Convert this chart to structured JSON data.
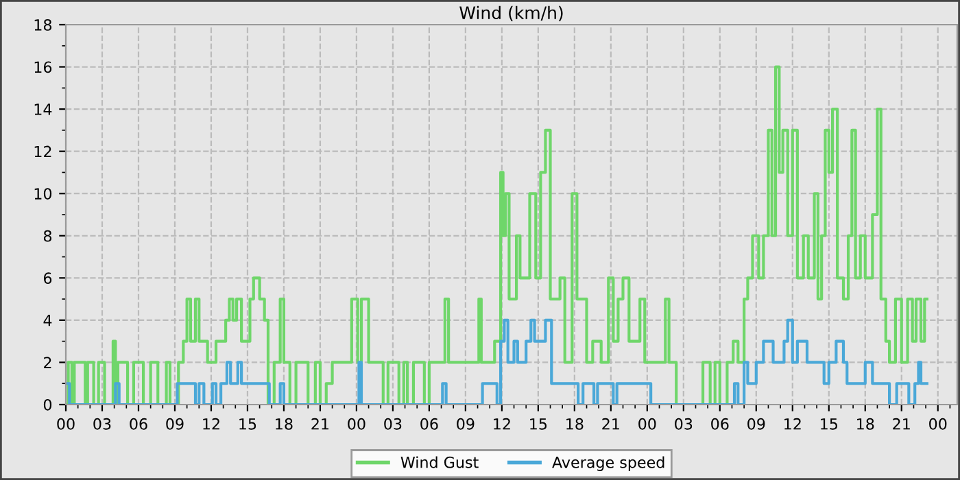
{
  "chart_data": {
    "type": "step",
    "title": "Wind (km/h)",
    "xlim": [
      0,
      73.6
    ],
    "ylim": [
      0,
      18
    ],
    "yticks": [
      0,
      2,
      4,
      6,
      8,
      10,
      12,
      14,
      16,
      18
    ],
    "xticks": [
      {
        "value": 0,
        "label": "00"
      },
      {
        "value": 3,
        "label": "03"
      },
      {
        "value": 6,
        "label": "06"
      },
      {
        "value": 9,
        "label": "09"
      },
      {
        "value": 12,
        "label": "12"
      },
      {
        "value": 15,
        "label": "15"
      },
      {
        "value": 18,
        "label": "18"
      },
      {
        "value": 21,
        "label": "21"
      },
      {
        "value": 24,
        "label": "00"
      },
      {
        "value": 27,
        "label": "03"
      },
      {
        "value": 30,
        "label": "06"
      },
      {
        "value": 33,
        "label": "09"
      },
      {
        "value": 36,
        "label": "12"
      },
      {
        "value": 39,
        "label": "15"
      },
      {
        "value": 42,
        "label": "18"
      },
      {
        "value": 45,
        "label": "21"
      },
      {
        "value": 48,
        "label": "00"
      },
      {
        "value": 51,
        "label": "03"
      },
      {
        "value": 54,
        "label": "06"
      },
      {
        "value": 57,
        "label": "09"
      },
      {
        "value": 60,
        "label": "12"
      },
      {
        "value": 63,
        "label": "15"
      },
      {
        "value": 66,
        "label": "18"
      },
      {
        "value": 69,
        "label": "21"
      },
      {
        "value": 72,
        "label": "00"
      }
    ],
    "grid": true,
    "legend": "bottom",
    "line_style": "solid",
    "series": [
      {
        "name": "Wind Gust",
        "color": "#6fd66a",
        "x": [
          0,
          0.2,
          0.5,
          0.7,
          1.4,
          1.6,
          1.8,
          2.3,
          2.7,
          3.2,
          3.9,
          4.1,
          4.3,
          4.9,
          5.1,
          5.6,
          6.2,
          6.4,
          7,
          7.6,
          8.3,
          8.6,
          9.3,
          9.7,
          10,
          10.3,
          10.7,
          11,
          11.7,
          12.4,
          13.2,
          13.5,
          13.8,
          14.1,
          14.5,
          15.2,
          15.5,
          16,
          16.4,
          16.7,
          17.2,
          17.7,
          18,
          18.5,
          19,
          20,
          20.6,
          21,
          21.5,
          22,
          23,
          23.6,
          24.1,
          24.4,
          25,
          26.2,
          26.6,
          27.5,
          27.9,
          28.2,
          28.7,
          29.6,
          30,
          30.8,
          31.3,
          31.6,
          33.6,
          34.1,
          34.3,
          35.4,
          35.9,
          36.1,
          36.3,
          36.6,
          37.2,
          37.5,
          38.3,
          38.8,
          39.2,
          39.6,
          40,
          40.8,
          41.2,
          41.8,
          42.2,
          43,
          43.5,
          44.2,
          44.8,
          45.2,
          45.6,
          46,
          46.5,
          47.4,
          47.8,
          49,
          49.5,
          49.8,
          50.4,
          52.4,
          52.6,
          53.2,
          53.6,
          54,
          54.6,
          55.1,
          55.5,
          56,
          56.3,
          56.7,
          57.2,
          57.6,
          58,
          58.3,
          58.6,
          58.9,
          59.2,
          59.6,
          60,
          60.4,
          60.9,
          61.3,
          61.8,
          62.1,
          62.4,
          62.7,
          63,
          63.3,
          63.7,
          64.2,
          64.6,
          64.9,
          65.2,
          65.6,
          66,
          66.6,
          67,
          67.3,
          67.7,
          68,
          68.5,
          69,
          69.5,
          69.9,
          70.2,
          70.6,
          70.9,
          71.1
        ],
        "values": [
          0,
          2,
          0,
          2,
          2,
          0,
          2,
          0,
          2,
          0,
          3,
          0,
          2,
          2,
          0,
          2,
          2,
          0,
          2,
          0,
          2,
          0,
          2,
          3,
          5,
          3,
          5,
          3,
          2,
          3,
          4,
          5,
          4,
          5,
          3,
          5,
          6,
          5,
          4,
          0,
          2,
          5,
          2,
          0,
          2,
          0,
          2,
          0,
          1,
          2,
          2,
          5,
          2,
          5,
          2,
          0,
          2,
          0,
          2,
          0,
          2,
          0,
          2,
          2,
          5,
          2,
          2,
          5,
          2,
          3,
          11,
          8,
          10,
          5,
          8,
          6,
          10,
          6,
          11,
          13,
          5,
          6,
          2,
          10,
          5,
          2,
          3,
          2,
          6,
          3,
          5,
          6,
          3,
          5,
          2,
          2,
          5,
          2,
          0,
          0,
          2,
          0,
          2,
          0,
          2,
          3,
          2,
          5,
          6,
          8,
          6,
          8,
          13,
          8,
          16,
          11,
          13,
          8,
          13,
          6,
          8,
          6,
          10,
          5,
          8,
          13,
          11,
          14,
          6,
          5,
          8,
          13,
          6,
          8,
          6,
          9,
          14,
          5,
          3,
          2,
          5,
          2,
          5,
          3,
          5,
          3,
          5,
          5
        ]
      },
      {
        "name": "Average speed",
        "color": "#4aa8d8",
        "x": [
          0,
          0.3,
          3.2,
          4.1,
          4.4,
          8.7,
          9.2,
          10.3,
          10.7,
          11,
          11.4,
          12.1,
          12.4,
          12.8,
          13.3,
          13.6,
          14.2,
          14.5,
          16.5,
          16.8,
          17.7,
          18,
          23.9,
          24.2,
          24.4,
          26,
          30.8,
          31.1,
          31.4,
          34.1,
          34.4,
          35.6,
          35.9,
          36.2,
          36.5,
          37,
          37.3,
          38,
          38.4,
          38.7,
          39.6,
          40.1,
          42,
          42.3,
          42.7,
          43.6,
          43.9,
          45.2,
          45.5,
          48,
          48.3,
          53,
          55.2,
          55.5,
          56,
          56.3,
          57,
          57.6,
          58.4,
          59.3,
          59.6,
          60,
          60.4,
          61.2,
          62.6,
          63,
          63.6,
          64.2,
          64.5,
          66,
          66.6,
          67.7,
          68,
          68.6,
          69.6,
          70.1,
          70.4,
          70.6,
          71.1
        ],
        "values": [
          1,
          0,
          0,
          1,
          0,
          0,
          1,
          1,
          0,
          1,
          0,
          1,
          0,
          1,
          2,
          1,
          2,
          1,
          1,
          0,
          1,
          0,
          0,
          2,
          0,
          0,
          0,
          1,
          0,
          0,
          1,
          0,
          3,
          4,
          2,
          3,
          2,
          3,
          4,
          3,
          4,
          1,
          1,
          0,
          1,
          0,
          1,
          0,
          1,
          1,
          0,
          0,
          1,
          0,
          2,
          1,
          2,
          3,
          2,
          3,
          4,
          2,
          3,
          2,
          1,
          2,
          3,
          2,
          1,
          2,
          1,
          1,
          0,
          1,
          0,
          1,
          2,
          1,
          1
        ]
      }
    ]
  }
}
